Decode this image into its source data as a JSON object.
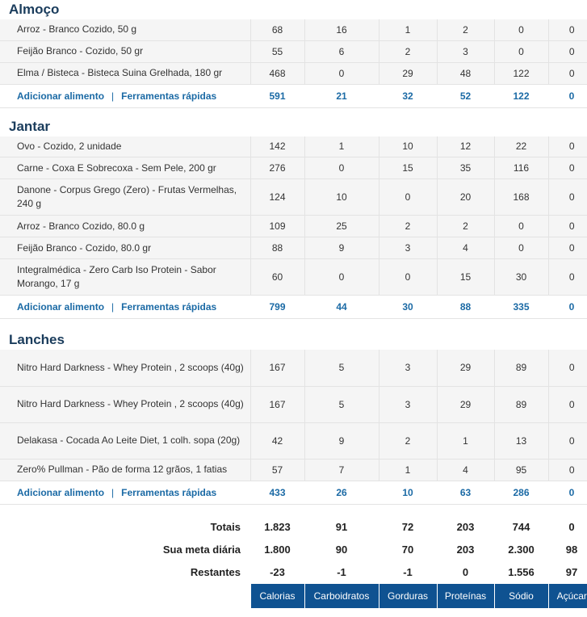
{
  "meals": [
    {
      "title": "Almoço",
      "rows": [
        {
          "name": "Arroz - Branco Cozido, 50 g",
          "cal": "68",
          "carb": "16",
          "fat": "1",
          "prot": "2",
          "sod": "0",
          "sug": "0"
        },
        {
          "name": "Feijão Branco - Cozido, 50 gr",
          "cal": "55",
          "carb": "6",
          "fat": "2",
          "prot": "3",
          "sod": "0",
          "sug": "0"
        },
        {
          "name": "Elma / Bisteca - Bisteca Suina Grelhada, 180 gr",
          "cal": "468",
          "carb": "0",
          "fat": "29",
          "prot": "48",
          "sod": "122",
          "sug": "0"
        }
      ],
      "totals": {
        "cal": "591",
        "carb": "21",
        "fat": "32",
        "prot": "52",
        "sod": "122",
        "sug": "0"
      }
    },
    {
      "title": "Jantar",
      "rows": [
        {
          "name": "Ovo - Cozido, 2 unidade",
          "cal": "142",
          "carb": "1",
          "fat": "10",
          "prot": "12",
          "sod": "22",
          "sug": "0"
        },
        {
          "name": "Carne - Coxa E Sobrecoxa - Sem Pele, 200 gr",
          "cal": "276",
          "carb": "0",
          "fat": "15",
          "prot": "35",
          "sod": "116",
          "sug": "0"
        },
        {
          "name": "Danone - Corpus Grego (Zero) - Frutas Vermelhas, 240 g",
          "cal": "124",
          "carb": "10",
          "fat": "0",
          "prot": "20",
          "sod": "168",
          "sug": "0"
        },
        {
          "name": "Arroz - Branco Cozido, 80.0 g",
          "cal": "109",
          "carb": "25",
          "fat": "2",
          "prot": "2",
          "sod": "0",
          "sug": "0"
        },
        {
          "name": "Feijão Branco - Cozido, 80.0 gr",
          "cal": "88",
          "carb": "9",
          "fat": "3",
          "prot": "4",
          "sod": "0",
          "sug": "0"
        },
        {
          "name": "Integralmédica - Zero Carb Iso Protein - Sabor Morango, 17 g",
          "cal": "60",
          "carb": "0",
          "fat": "0",
          "prot": "15",
          "sod": "30",
          "sug": "0"
        }
      ],
      "totals": {
        "cal": "799",
        "carb": "44",
        "fat": "30",
        "prot": "88",
        "sod": "335",
        "sug": "0"
      }
    },
    {
      "title": "Lanches",
      "rows": [
        {
          "name": "Nitro Hard Darkness - Whey Protein , 2 scoops (40g)",
          "cal": "167",
          "carb": "5",
          "fat": "3",
          "prot": "29",
          "sod": "89",
          "sug": "0"
        },
        {
          "name": "Nitro Hard Darkness - Whey Protein , 2 scoops (40g)",
          "cal": "167",
          "carb": "5",
          "fat": "3",
          "prot": "29",
          "sod": "89",
          "sug": "0"
        },
        {
          "name": "Delakasa - Cocada Ao Leite Diet, 1 colh. sopa (20g)",
          "cal": "42",
          "carb": "9",
          "fat": "2",
          "prot": "1",
          "sod": "13",
          "sug": "0"
        },
        {
          "name": "Zero% Pullman - Pão de forma 12 grãos, 1 fatias",
          "cal": "57",
          "carb": "7",
          "fat": "1",
          "prot": "4",
          "sod": "95",
          "sug": "0"
        }
      ],
      "totals": {
        "cal": "433",
        "carb": "26",
        "fat": "10",
        "prot": "63",
        "sod": "286",
        "sug": "0"
      }
    }
  ],
  "links": {
    "add_food": "Adicionar alimento",
    "separator": "|",
    "quick_tools": "Ferramentas rápidas"
  },
  "summary": {
    "totals_label": "Totais",
    "totals": [
      "1.823",
      "91",
      "72",
      "203",
      "744",
      "0"
    ],
    "goal_label": "Sua meta diária",
    "goal": [
      "1.800",
      "90",
      "70",
      "203",
      "2.300",
      "98"
    ],
    "remaining_label": "Restantes",
    "remaining": [
      "-23",
      "-1",
      "-1",
      "0",
      "1.556",
      "97"
    ],
    "remaining_status": [
      "neg",
      "neg",
      "neg",
      "neg",
      "pos",
      "pos"
    ]
  },
  "columns": [
    "Calorias",
    "Carboidratos",
    "Gorduras",
    "Proteínas",
    "Sódio",
    "Açúcar"
  ],
  "colors": {
    "header_bg": "#0f5291",
    "link": "#1b6aa5",
    "negative": "#d9180e",
    "positive": "#2e8b1a",
    "title": "#1a3c5c"
  }
}
